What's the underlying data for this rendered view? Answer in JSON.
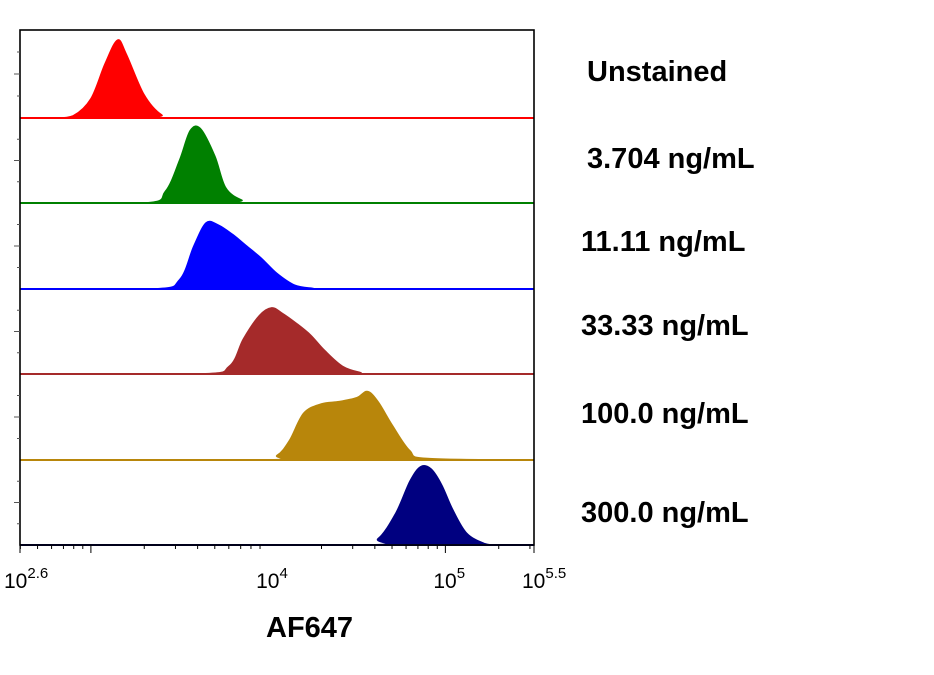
{
  "chart_data": {
    "type": "area",
    "chart_kind": "stacked flow cytometry histogram overlay",
    "xlabel": "AF647",
    "x_scale": "log10",
    "xlim_exponent": [
      2.6,
      5.5
    ],
    "x_ticks": [
      {
        "base": "10",
        "exp": "2.6",
        "value_exponent": 2.6
      },
      {
        "base": "10",
        "exp": "4",
        "value_exponent": 4
      },
      {
        "base": "10",
        "exp": "5",
        "value_exponent": 5
      },
      {
        "base": "10",
        "exp": "5.5",
        "value_exponent": 5.5
      }
    ],
    "legend_placement": "right",
    "series": [
      {
        "name": "Unstained",
        "color": "#ff0000",
        "x_exponent": [
          2.6,
          2.8,
          2.9,
          3.0,
          3.08,
          3.15,
          3.2,
          3.3,
          3.4,
          3.5,
          5.5
        ],
        "y": [
          0.0,
          0.0,
          0.03,
          0.25,
          0.7,
          1.0,
          0.82,
          0.3,
          0.04,
          0.0,
          0.0
        ]
      },
      {
        "name": "3.704 ng/mL",
        "color": "#008000",
        "x_exponent": [
          2.6,
          3.3,
          3.42,
          3.5,
          3.56,
          3.62,
          3.7,
          3.76,
          3.85,
          3.95,
          5.5
        ],
        "y": [
          0.0,
          0.0,
          0.15,
          0.55,
          0.93,
          0.95,
          0.6,
          0.2,
          0.04,
          0.0,
          0.0
        ]
      },
      {
        "name": "11.11 ng/mL",
        "color": "#0000ff",
        "x_exponent": [
          2.6,
          3.35,
          3.5,
          3.58,
          3.65,
          3.72,
          3.8,
          3.88,
          3.96,
          4.05,
          4.15,
          4.25,
          4.35,
          5.5
        ],
        "y": [
          0.0,
          0.0,
          0.12,
          0.55,
          0.85,
          0.82,
          0.7,
          0.55,
          0.4,
          0.2,
          0.05,
          0.01,
          0.0,
          0.0
        ]
      },
      {
        "name": "33.33 ng/mL",
        "color": "#a52a2a",
        "x_exponent": [
          2.6,
          3.6,
          3.78,
          3.86,
          3.95,
          4.02,
          4.08,
          4.16,
          4.24,
          4.32,
          4.42,
          4.52,
          4.6,
          5.5
        ],
        "y": [
          0.0,
          0.0,
          0.1,
          0.45,
          0.75,
          0.85,
          0.78,
          0.65,
          0.5,
          0.3,
          0.1,
          0.02,
          0.0,
          0.0
        ]
      },
      {
        "name": "100.0 ng/mL",
        "color": "#b8860b",
        "x_exponent": [
          2.6,
          3.95,
          4.05,
          4.12,
          4.2,
          4.3,
          4.4,
          4.5,
          4.56,
          4.62,
          4.7,
          4.8,
          4.9,
          5.5
        ],
        "y": [
          0.0,
          0.0,
          0.06,
          0.25,
          0.6,
          0.72,
          0.75,
          0.8,
          0.88,
          0.75,
          0.45,
          0.12,
          0.02,
          0.0
        ]
      },
      {
        "name": "300.0 ng/mL",
        "color": "#000080",
        "x_exponent": [
          2.6,
          4.5,
          4.62,
          4.72,
          4.8,
          4.86,
          4.92,
          4.98,
          5.04,
          5.12,
          5.22,
          5.3,
          5.5
        ],
        "y": [
          0.0,
          0.0,
          0.08,
          0.4,
          0.8,
          0.98,
          0.95,
          0.75,
          0.45,
          0.15,
          0.02,
          0.0,
          0.0
        ]
      }
    ]
  }
}
